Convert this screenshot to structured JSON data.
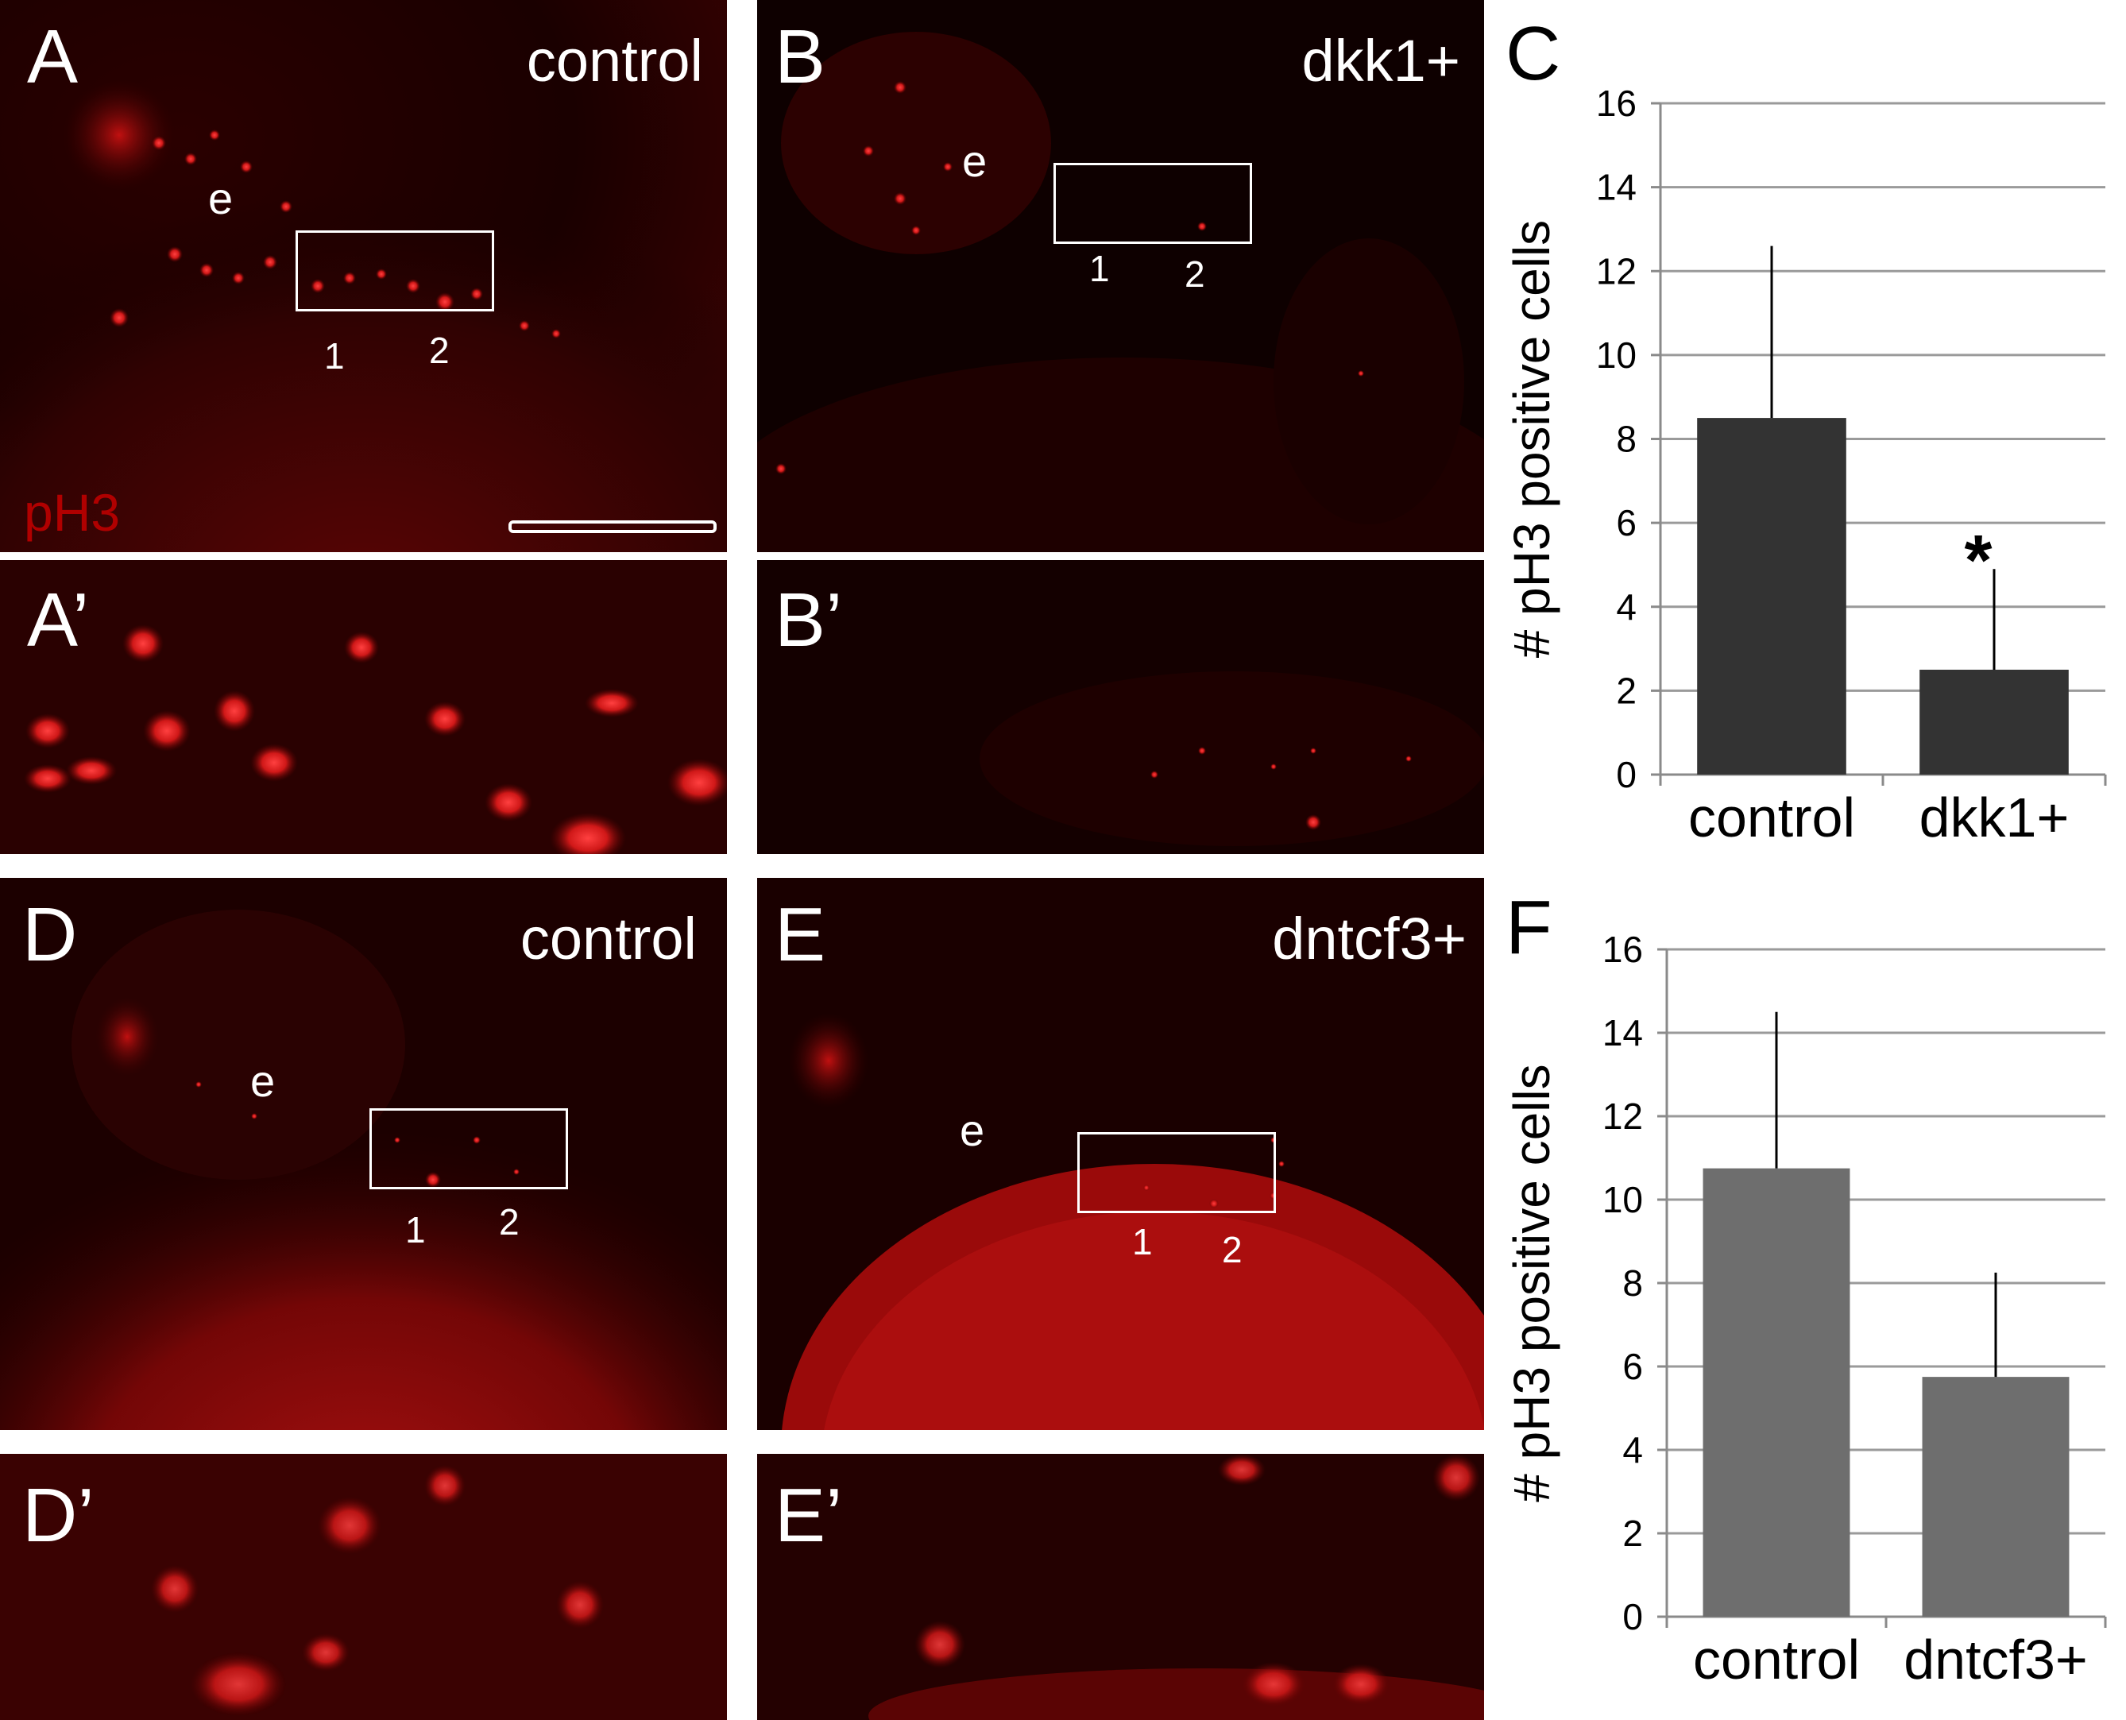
{
  "panels": [
    {
      "id": "A",
      "label": "A",
      "condition": "control",
      "e": "e",
      "roi_1": "1",
      "roi_2": "2",
      "stain": "pH3"
    },
    {
      "id": "B",
      "label": "B",
      "condition": "dkk1+",
      "e": "e",
      "roi_1": "1",
      "roi_2": "2"
    },
    {
      "id": "A2",
      "label": "A’"
    },
    {
      "id": "B2",
      "label": "B’"
    },
    {
      "id": "D",
      "label": "D",
      "condition": "control",
      "e": "e",
      "roi_1": "1",
      "roi_2": "2"
    },
    {
      "id": "E",
      "label": "E",
      "condition": "dntcf3+",
      "e": "e",
      "roi_1": "1",
      "roi_2": "2"
    },
    {
      "id": "D2",
      "label": "D’"
    },
    {
      "id": "E2",
      "label": "E’"
    }
  ],
  "chart_labels": {
    "C": "C",
    "F": "F"
  },
  "chart_data": [
    {
      "type": "bar",
      "panel": "C",
      "categories": [
        "control",
        "dkk1+"
      ],
      "values": [
        8.5,
        2.5
      ],
      "error": [
        4.1,
        2.4
      ],
      "significance": [
        "",
        "*"
      ],
      "ylabel": "# pH3 positive cells",
      "ylim": [
        0,
        16
      ],
      "yticks": [
        0,
        2,
        4,
        6,
        8,
        10,
        12,
        14,
        16
      ],
      "grid": true,
      "bar_color": "#333333"
    },
    {
      "type": "bar",
      "panel": "F",
      "categories": [
        "control",
        "dntcf3+"
      ],
      "values": [
        10.75,
        5.75
      ],
      "error": [
        3.75,
        2.5
      ],
      "significance": [
        "",
        ""
      ],
      "ylabel": "# pH3 positive cells",
      "ylim": [
        0,
        16
      ],
      "yticks": [
        0,
        2,
        4,
        6,
        8,
        10,
        12,
        14,
        16
      ],
      "grid": true,
      "bar_color": "#6e6e6e"
    }
  ]
}
